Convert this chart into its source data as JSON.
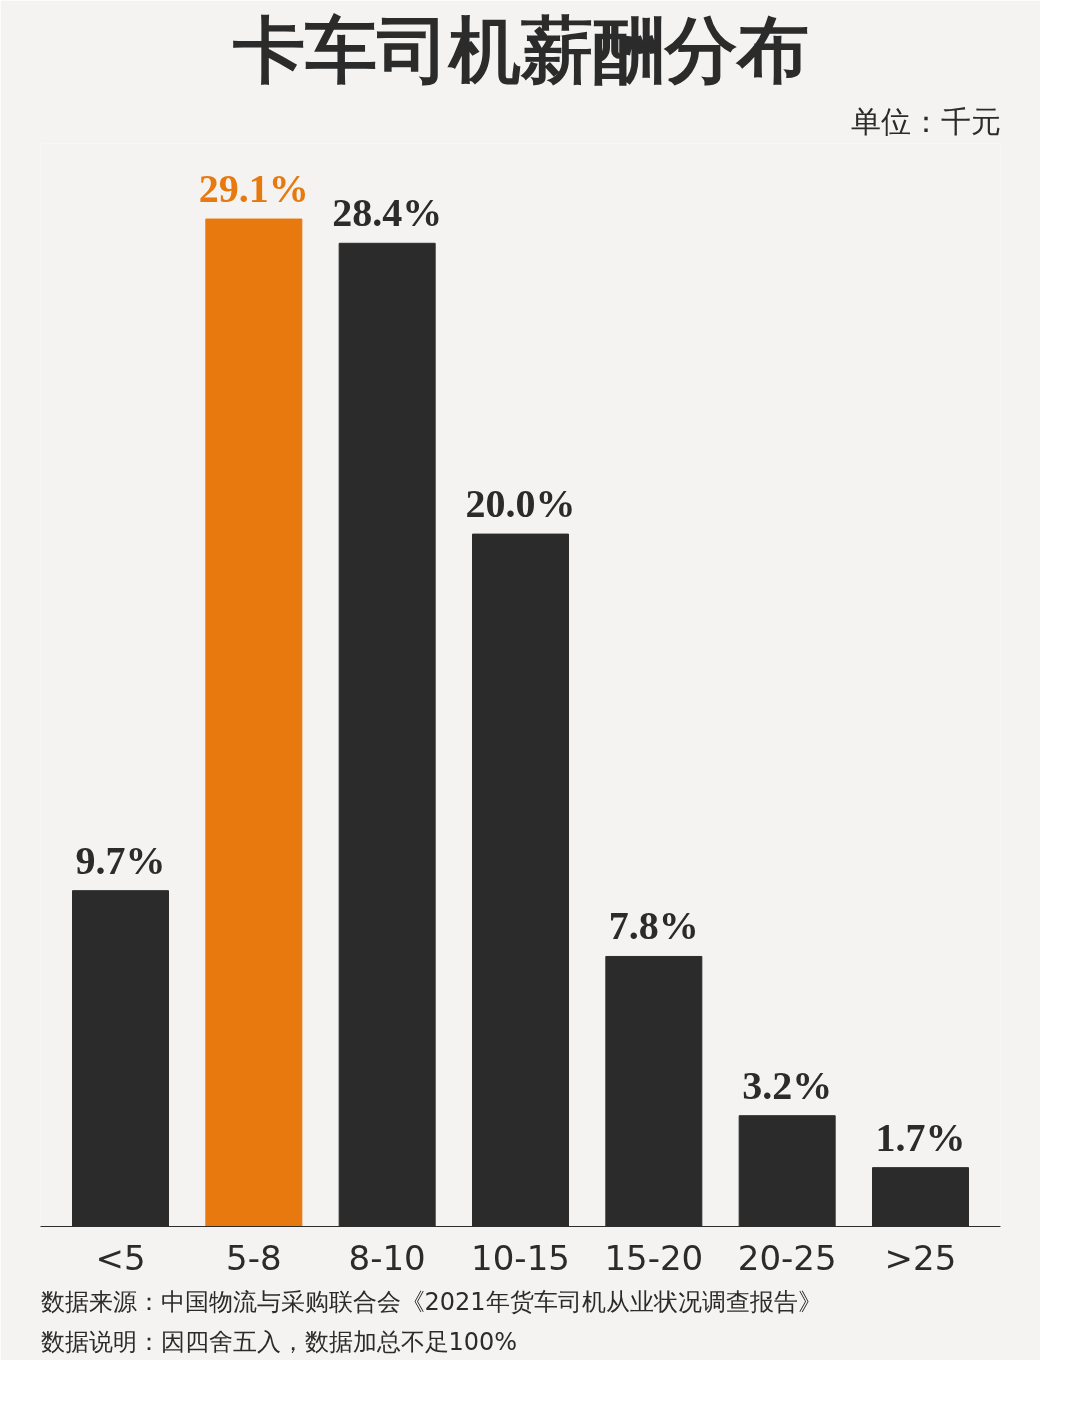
{
  "chart_data": {
    "type": "bar",
    "title": "卡车司机薪酬分布",
    "subtitle": "单位：千元",
    "categories": [
      "<5",
      "5-8",
      "8-10",
      "10-15",
      "15-20",
      "20-25",
      ">25"
    ],
    "values": [
      9.7,
      29.1,
      28.4,
      20.0,
      7.8,
      3.2,
      1.7
    ],
    "colors": [
      "#2b2b2b",
      "#e8790f",
      "#2b2b2b",
      "#2b2b2b",
      "#2b2b2b",
      "#2b2b2b",
      "#2b2b2b"
    ],
    "value_labels": [
      "9.7%",
      "29.1%",
      "28.4%",
      "20.0%",
      "7.8%",
      "3.2%",
      "1.7%"
    ],
    "annotations": [
      "数据说明：因四舍五入，数据加总不足100%",
      "数据来源：中国物流与采购联合会《2021年货车司机从业状况调查报告》"
    ],
    "grid": false
  }
}
